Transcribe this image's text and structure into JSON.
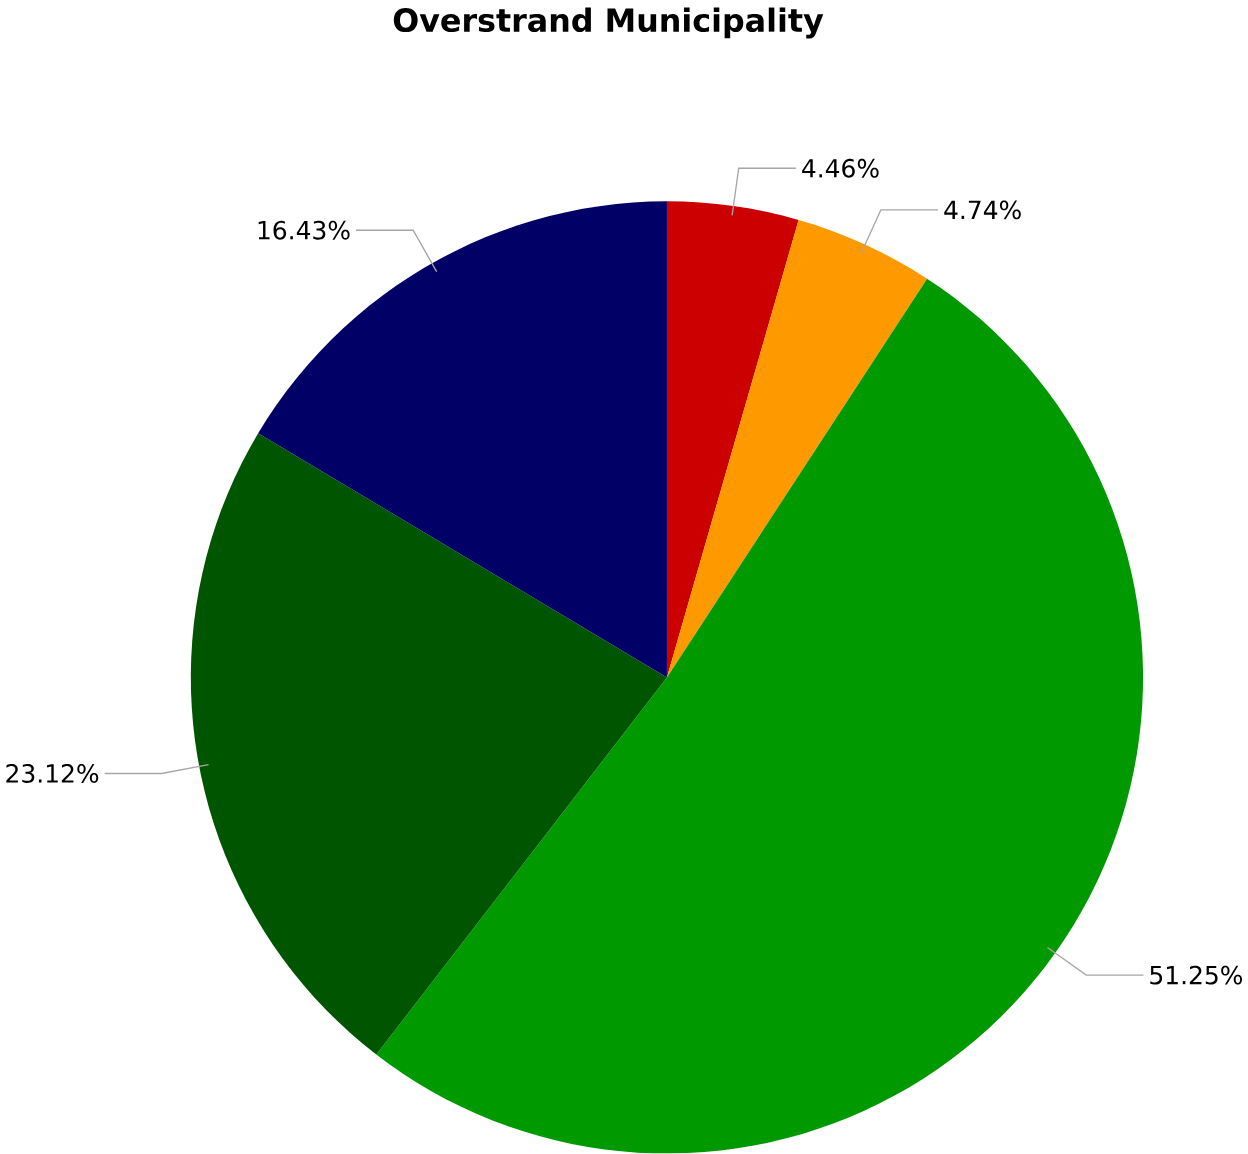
{
  "chart_data": {
    "type": "pie",
    "title": "Overstrand Municipality",
    "categories": [
      null,
      null,
      null,
      null,
      null
    ],
    "values": [
      4.46,
      4.74,
      51.25,
      23.12,
      16.43
    ],
    "value_labels": [
      "4.46%",
      "4.74%",
      "51.25%",
      "23.12%",
      "16.43%"
    ],
    "colors": [
      "#cc0000",
      "#ff9900",
      "#009900",
      "#005500",
      "#000066"
    ]
  }
}
